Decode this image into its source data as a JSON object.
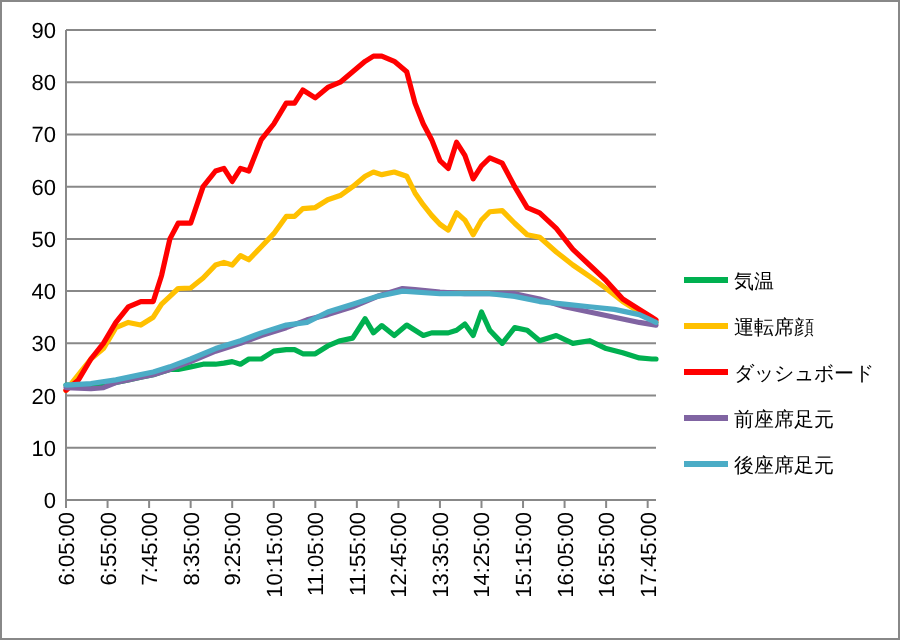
{
  "chart_data": {
    "type": "line",
    "grid": "y",
    "legend": "right",
    "marker": "none",
    "line_style": "solid",
    "xlim": [
      6.083,
      17.917
    ],
    "xticks": [
      {
        "value": 6.083333,
        "label": "6:05:00"
      },
      {
        "value": 6.916667,
        "label": "6:55:00"
      },
      {
        "value": 7.75,
        "label": "7:45:00"
      },
      {
        "value": 8.583333,
        "label": "8:35:00"
      },
      {
        "value": 9.416667,
        "label": "9:25:00"
      },
      {
        "value": 10.25,
        "label": "10:15:00"
      },
      {
        "value": 11.083333,
        "label": "11:05:00"
      },
      {
        "value": 11.916667,
        "label": "11:55:00"
      },
      {
        "value": 12.75,
        "label": "12:45:00"
      },
      {
        "value": 13.583333,
        "label": "13:35:00"
      },
      {
        "value": 14.416667,
        "label": "14:25:00"
      },
      {
        "value": 15.25,
        "label": "15:15:00"
      },
      {
        "value": 16.083333,
        "label": "16:05:00"
      },
      {
        "value": 16.916667,
        "label": "16:55:00"
      },
      {
        "value": 17.75,
        "label": "17:45:00"
      }
    ],
    "ylim": [
      0,
      90
    ],
    "yticks": [
      0,
      10,
      20,
      30,
      40,
      50,
      60,
      70,
      80,
      90
    ],
    "x": [
      6.083,
      6.333,
      6.583,
      6.833,
      7.083,
      7.333,
      7.583,
      7.833,
      8.0,
      8.167,
      8.333,
      8.583,
      8.833,
      9.083,
      9.25,
      9.417,
      9.583,
      9.75,
      10.0,
      10.25,
      10.5,
      10.667,
      10.833,
      11.083,
      11.333,
      11.583,
      11.833,
      12.083,
      12.25,
      12.417,
      12.667,
      12.917,
      13.083,
      13.25,
      13.417,
      13.583,
      13.75,
      13.917,
      14.083,
      14.25,
      14.417,
      14.583,
      14.833,
      15.083,
      15.333,
      15.583,
      15.917,
      16.25,
      16.583,
      16.917,
      17.25,
      17.583,
      17.833,
      17.917
    ],
    "series": [
      {
        "name": "気温",
        "color": "#00b050",
        "values": [
          22,
          22,
          22,
          22,
          22.5,
          23,
          23.5,
          24,
          24.5,
          25,
          25,
          25.5,
          26,
          26,
          26.2,
          26.5,
          26,
          27,
          27,
          28.5,
          28.8,
          28.8,
          28,
          28,
          29.5,
          30.5,
          31,
          34.7,
          32,
          33.4,
          31.5,
          33.5,
          32.5,
          31.5,
          32,
          32,
          32,
          32.5,
          33.7,
          31.5,
          36,
          32.5,
          30,
          33,
          32.5,
          30.5,
          31.5,
          30,
          30.5,
          29,
          28.2,
          27.2,
          27,
          27
        ]
      },
      {
        "name": "運転席顔",
        "color": "#ffc000",
        "values": [
          21,
          24,
          27,
          29,
          33,
          34,
          33.5,
          35,
          37.5,
          39,
          40.5,
          40.6,
          42.5,
          45,
          45.5,
          45,
          46.8,
          46,
          48.5,
          51,
          54.3,
          54.3,
          55.8,
          56,
          57.5,
          58.3,
          60,
          62,
          62.8,
          62.3,
          62.8,
          62,
          58.8,
          56.5,
          54.5,
          52.8,
          51.7,
          55,
          53.6,
          50.8,
          53.6,
          55.2,
          55.4,
          53,
          50.8,
          50.3,
          47.5,
          45,
          42.8,
          40.5,
          38,
          36,
          34.5,
          34
        ]
      },
      {
        "name": "ダッシュボード",
        "color": "#ff0000",
        "values": [
          21,
          23,
          27,
          30,
          34,
          37,
          38,
          38,
          43,
          50,
          53,
          53,
          60,
          63,
          63.5,
          61,
          63.5,
          63,
          69,
          72,
          76,
          76,
          78.5,
          77,
          79,
          80,
          82,
          84,
          85,
          85,
          84,
          82,
          76,
          72,
          69,
          65,
          63.5,
          68.5,
          66,
          61.5,
          64,
          65.5,
          64.5,
          60,
          56,
          55,
          52,
          48,
          45,
          42,
          38.5,
          36.5,
          35,
          34.5
        ]
      },
      {
        "name": "前座席足元",
        "color": "#8064a2",
        "x": [
          6.083,
          6.583,
          6.833,
          7.083,
          7.333,
          7.583,
          7.833,
          8.167,
          8.583,
          9.083,
          9.583,
          10.0,
          10.5,
          10.917,
          11.333,
          11.833,
          12.333,
          12.833,
          13.083,
          13.583,
          14.083,
          14.583,
          15.083,
          15.583,
          16.083,
          16.583,
          17.083,
          17.583,
          17.917
        ],
        "values": [
          21.5,
          21.3,
          21.5,
          22.5,
          23,
          23.5,
          24,
          25,
          26.5,
          28.5,
          30,
          31.5,
          33,
          34.5,
          35.5,
          37,
          39,
          40.5,
          40.3,
          39.8,
          39.5,
          39.5,
          39.5,
          38.5,
          37,
          36,
          35,
          34,
          33.5
        ]
      },
      {
        "name": "後座席足元",
        "color": "#4bacc6",
        "x": [
          6.083,
          6.583,
          7.083,
          7.583,
          7.833,
          8.167,
          8.583,
          9.083,
          9.583,
          10.0,
          10.5,
          10.917,
          11.333,
          11.833,
          12.333,
          12.833,
          13.583,
          14.583,
          15.083,
          15.583,
          16.083,
          16.583,
          17.083,
          17.583,
          17.917
        ],
        "values": [
          22,
          22.3,
          23,
          24,
          24.5,
          25.5,
          27,
          29,
          30.5,
          32,
          33.5,
          34,
          36,
          37.5,
          39,
          40,
          39.5,
          39.5,
          39,
          38,
          37.5,
          37,
          36.5,
          35.5,
          34
        ]
      }
    ]
  }
}
